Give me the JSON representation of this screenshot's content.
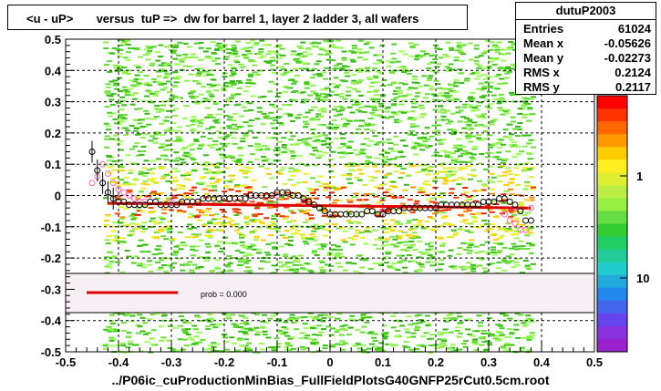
{
  "title": "<u - uP>       versus  tuP =>  dw for barrel 1, layer 2 ladder 3, all wafers",
  "footer": "../P06ic_cuProductionMinBias_FullFieldPlotsG40GNFP25rCut0.5cm.root",
  "stats": {
    "name": "dutuP2003",
    "rows": [
      {
        "label": "Entries",
        "value": "61024"
      },
      {
        "label": "Mean x",
        "value": "-0.05626"
      },
      {
        "label": "Mean y",
        "value": "-0.02273"
      },
      {
        "label": "RMS x",
        "value": "0.2124"
      },
      {
        "label": "RMS y",
        "value": "0.2117"
      }
    ]
  },
  "legend": {
    "fit_label": "prob = 0.000",
    "fit_color": "#e00000"
  },
  "chart_data": {
    "type": "scatter",
    "xlim": [
      -0.5,
      0.5
    ],
    "ylim": [
      -0.5,
      0.5
    ],
    "x_ticks": [
      "-0.5",
      "-0.4",
      "-0.3",
      "-0.2",
      "-0.1",
      "0",
      "0.1",
      "0.2",
      "0.3",
      "0.4",
      "0.5"
    ],
    "y_ticks": [
      "-0.5",
      "-0.4",
      "-0.3",
      "-0.2",
      "-0.1",
      "0",
      "0.1",
      "0.2",
      "0.3",
      "0.4",
      "0.5"
    ],
    "z_ticks": [
      "1",
      "10"
    ],
    "grid": true,
    "fit_line": {
      "x": [
        -0.42,
        0.38
      ],
      "y": [
        -0.025,
        -0.04
      ]
    },
    "profile_black": {
      "x": [
        -0.45,
        -0.44,
        -0.43,
        -0.42,
        -0.41,
        -0.4,
        -0.39,
        -0.38,
        -0.37,
        -0.36,
        -0.35,
        -0.34,
        -0.33,
        -0.32,
        -0.31,
        -0.3,
        -0.29,
        -0.28,
        -0.27,
        -0.26,
        -0.25,
        -0.24,
        -0.23,
        -0.22,
        -0.21,
        -0.2,
        -0.19,
        -0.18,
        -0.17,
        -0.16,
        -0.15,
        -0.14,
        -0.13,
        -0.12,
        -0.11,
        -0.1,
        -0.09,
        -0.08,
        -0.07,
        -0.06,
        -0.05,
        -0.04,
        -0.03,
        -0.02,
        -0.01,
        0.0,
        0.01,
        0.02,
        0.03,
        0.04,
        0.05,
        0.06,
        0.07,
        0.08,
        0.09,
        0.1,
        0.11,
        0.12,
        0.13,
        0.14,
        0.15,
        0.16,
        0.17,
        0.18,
        0.19,
        0.2,
        0.21,
        0.22,
        0.23,
        0.24,
        0.25,
        0.26,
        0.27,
        0.28,
        0.29,
        0.3,
        0.31,
        0.32,
        0.33,
        0.34,
        0.35,
        0.36,
        0.37,
        0.38
      ],
      "y": [
        0.14,
        0.08,
        0.04,
        0.01,
        -0.01,
        -0.02,
        -0.02,
        -0.03,
        -0.03,
        -0.03,
        -0.03,
        -0.02,
        -0.02,
        -0.03,
        -0.03,
        -0.03,
        -0.03,
        -0.02,
        -0.02,
        -0.02,
        -0.02,
        -0.01,
        -0.01,
        -0.01,
        -0.01,
        -0.01,
        -0.01,
        -0.01,
        -0.01,
        -0.01,
        0.0,
        0.0,
        0.0,
        0.0,
        0.0,
        0.01,
        0.01,
        0.01,
        0.0,
        0.0,
        -0.01,
        -0.02,
        -0.03,
        -0.04,
        -0.05,
        -0.06,
        -0.06,
        -0.06,
        -0.06,
        -0.06,
        -0.06,
        -0.06,
        -0.05,
        -0.05,
        -0.06,
        -0.06,
        -0.05,
        -0.05,
        -0.05,
        -0.04,
        -0.04,
        -0.04,
        -0.04,
        -0.04,
        -0.04,
        -0.04,
        -0.03,
        -0.03,
        -0.03,
        -0.03,
        -0.03,
        -0.03,
        -0.03,
        -0.03,
        -0.02,
        -0.02,
        -0.02,
        -0.01,
        -0.01,
        -0.02,
        -0.03,
        -0.05,
        -0.08,
        -0.08
      ]
    },
    "profile_pink": {
      "x": [
        -0.45,
        -0.44,
        -0.43,
        -0.42,
        -0.41,
        -0.4,
        -0.39,
        -0.38,
        -0.37,
        -0.36,
        -0.35,
        -0.3,
        -0.25,
        -0.2,
        -0.15,
        -0.1,
        -0.05,
        0.0,
        0.05,
        0.1,
        0.15,
        0.2,
        0.25,
        0.3,
        0.33,
        0.34,
        0.35,
        0.36,
        0.37,
        0.38
      ],
      "y": [
        0.04,
        0.06,
        0.1,
        0.07,
        0.04,
        0.02,
        0.01,
        0.0,
        -0.01,
        -0.02,
        -0.02,
        -0.02,
        -0.02,
        -0.01,
        -0.01,
        0.0,
        -0.02,
        -0.06,
        -0.06,
        -0.05,
        -0.04,
        -0.04,
        -0.03,
        -0.02,
        -0.06,
        -0.08,
        -0.09,
        -0.11,
        -0.11,
        -0.04
      ]
    }
  }
}
